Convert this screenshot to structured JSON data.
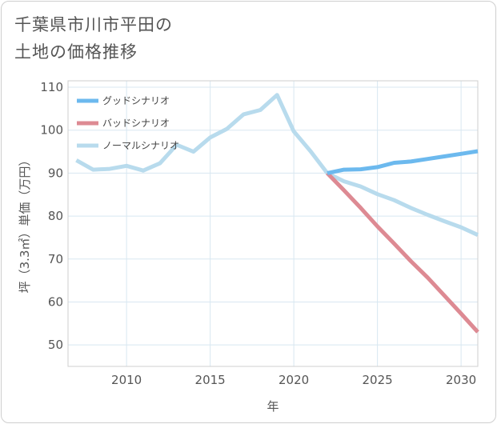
{
  "chart_data": {
    "type": "line",
    "title_lines": [
      "千葉県市川市平田の",
      "土地の価格推移"
    ],
    "xlabel": "年",
    "ylabel": "坪（3.3㎡）単価（万円）",
    "xlim": [
      2006.5,
      2031
    ],
    "ylim": [
      45,
      111.5
    ],
    "xticks": [
      2010,
      2015,
      2020,
      2025,
      2030
    ],
    "yticks": [
      50,
      60,
      70,
      80,
      90,
      100,
      110
    ],
    "grid": true,
    "legend_position": "top-left",
    "series": [
      {
        "name": "グッドシナリオ",
        "color": "#6cb9ee",
        "x": [
          2022,
          2023,
          2024,
          2025,
          2026,
          2027,
          2028,
          2029,
          2030,
          2031
        ],
        "y": [
          90.0,
          90.8,
          90.9,
          91.4,
          92.4,
          92.7,
          93.3,
          93.9,
          94.5,
          95.1
        ]
      },
      {
        "name": "バッドシナリオ",
        "color": "#dd8a93",
        "x": [
          2022,
          2023,
          2024,
          2025,
          2026,
          2027,
          2028,
          2029,
          2030,
          2031
        ],
        "y": [
          90.0,
          86.0,
          81.9,
          77.6,
          73.6,
          69.5,
          65.7,
          61.5,
          57.3,
          53.0
        ]
      },
      {
        "name": "ノーマルシナリオ",
        "color": "#b8dbed",
        "x": [
          2007,
          2008,
          2009,
          2010,
          2011,
          2012,
          2013,
          2014,
          2015,
          2016,
          2017,
          2018,
          2019,
          2020,
          2021,
          2022,
          2023,
          2024,
          2025,
          2026,
          2027,
          2028,
          2029,
          2030,
          2031
        ],
        "y": [
          93.0,
          90.8,
          91.0,
          91.7,
          90.6,
          92.3,
          96.6,
          95.0,
          98.3,
          100.3,
          103.7,
          104.7,
          108.2,
          99.7,
          95.1,
          90.0,
          88.1,
          86.9,
          85.1,
          83.7,
          81.9,
          80.3,
          78.8,
          77.4,
          75.6
        ]
      }
    ]
  }
}
